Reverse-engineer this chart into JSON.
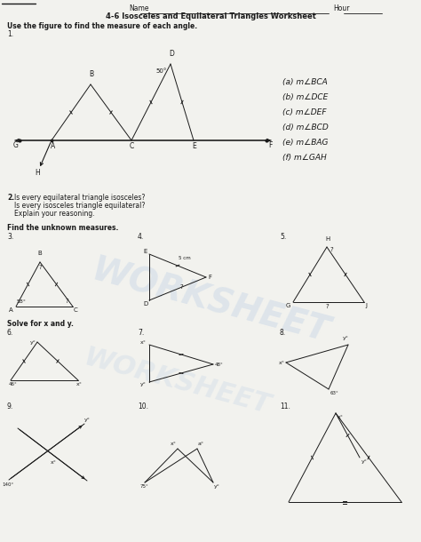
{
  "title": "4-6 Isosceles and Equilateral Triangles Worksheet",
  "name_label": "Name",
  "hour_label": "Hour",
  "bg_color": "#f2f2ee",
  "text_color": "#1a1a1a",
  "watermark": "WORKSHEET",
  "watermark_color": "#b8cce4",
  "section1_header": "Use the figure to find the measure of each angle.",
  "section1_num": "1.",
  "section2_num": "2.",
  "section2_line1": "Is every equilateral triangle isosceles?",
  "section2_line2": "Is every isosceles triangle equilateral?",
  "section2_line3": "Explain your reasoning.",
  "section3_header": "Find the unknown measures.",
  "section4_header": "Solve for x and y.",
  "angle_labels": [
    "(a) m∠BCA",
    "(b) m∠DCE",
    "(c) m∠DEF",
    "(d) m∠BCD",
    "(e) m∠BAG",
    "(f) m∠GAH"
  ]
}
